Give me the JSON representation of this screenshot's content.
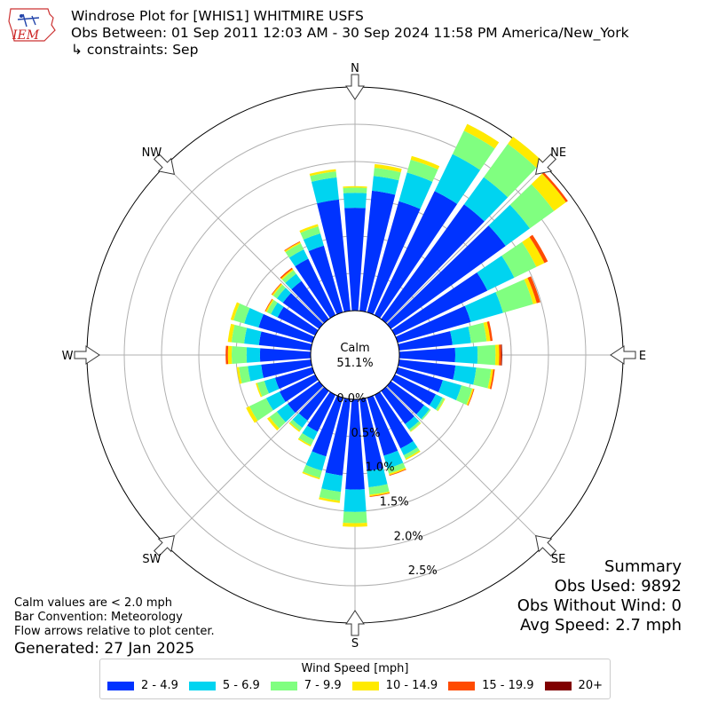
{
  "header": {
    "logo_text": "IEM",
    "title": "Windrose Plot for [WHIS1] WHITMIRE USFS",
    "obs_between": "Obs Between: 01 Sep 2011 12:03 AM - 30 Sep 2024 11:58 PM America/New_York",
    "constraints": "↳ constraints: Sep"
  },
  "summary": {
    "heading": "Summary",
    "obs_used": "Obs Used: 9892",
    "obs_without_wind": "Obs Without Wind: 0",
    "avg_speed": "Avg Speed: 2.7 mph"
  },
  "notes": {
    "calm_note": "Calm values are < 2.0 mph",
    "bar_convention": "Bar Convention: Meteorology",
    "flow_arrows": "Flow arrows relative to plot center.",
    "generated": "Generated: 27 Jan 2025"
  },
  "chart_data": {
    "type": "windrose",
    "calm_label": "Calm",
    "calm_percent": "51.1%",
    "radial_unit": "percent of observations",
    "radial_ticks": [
      "0.0%",
      "0.5%",
      "1.0%",
      "1.5%",
      "2.0%",
      "2.5%"
    ],
    "radial_tick_values": [
      0,
      0.5,
      1.0,
      1.5,
      2.0,
      2.5
    ],
    "radial_max": 3.0,
    "direction_labels": [
      "N",
      "NE",
      "E",
      "SE",
      "S",
      "SW",
      "W",
      "NW"
    ],
    "direction_angles": [
      0,
      45,
      90,
      135,
      180,
      225,
      270,
      315
    ],
    "legend_title": "Wind Speed [mph]",
    "bins": [
      {
        "label": "2 - 4.9",
        "color": "#0033ff"
      },
      {
        "label": "5 - 6.9",
        "color": "#00d4f0"
      },
      {
        "label": "7 - 9.9",
        "color": "#80ff80"
      },
      {
        "label": "10 - 14.9",
        "color": "#ffea00"
      },
      {
        "label": "15 - 19.9",
        "color": "#ff4b00"
      },
      {
        "label": "20+",
        "color": "#800000"
      }
    ],
    "sectors": [
      {
        "dir": 0,
        "values": [
          1.38,
          0.2,
          0.07,
          0.02,
          0.0,
          0.0
        ]
      },
      {
        "dir": 10,
        "values": [
          1.62,
          0.2,
          0.11,
          0.05,
          0.0,
          0.0
        ]
      },
      {
        "dir": 20,
        "values": [
          1.55,
          0.4,
          0.18,
          0.05,
          0.0,
          0.0
        ]
      },
      {
        "dir": 30,
        "values": [
          1.85,
          0.55,
          0.35,
          0.1,
          0.0,
          0.0
        ]
      },
      {
        "dir": 40,
        "values": [
          1.9,
          0.45,
          0.55,
          0.12,
          0.0,
          0.0
        ]
      },
      {
        "dir": 50,
        "values": [
          1.9,
          0.4,
          0.4,
          0.2,
          0.03,
          0.0
        ]
      },
      {
        "dir": 60,
        "values": [
          1.38,
          0.4,
          0.33,
          0.12,
          0.05,
          0.0
        ]
      },
      {
        "dir": 70,
        "values": [
          1.02,
          0.45,
          0.42,
          0.05,
          0.05,
          0.0
        ]
      },
      {
        "dir": 80,
        "values": [
          0.72,
          0.25,
          0.21,
          0.05,
          0.03,
          0.0
        ]
      },
      {
        "dir": 90,
        "values": [
          0.75,
          0.3,
          0.24,
          0.05,
          0.03,
          0.01
        ]
      },
      {
        "dir": 100,
        "values": [
          0.76,
          0.28,
          0.2,
          0.03,
          0.02,
          0.0
        ]
      },
      {
        "dir": 110,
        "values": [
          0.63,
          0.26,
          0.15,
          0.02,
          0.01,
          0.0
        ]
      },
      {
        "dir": 120,
        "values": [
          0.61,
          0.1,
          0.03,
          0.01,
          0.0,
          0.0
        ]
      },
      {
        "dir": 130,
        "values": [
          0.55,
          0.09,
          0.02,
          0.0,
          0.0,
          0.0
        ]
      },
      {
        "dir": 140,
        "values": [
          0.55,
          0.09,
          0.03,
          0.01,
          0.0,
          0.0
        ]
      },
      {
        "dir": 150,
        "values": [
          0.8,
          0.1,
          0.05,
          0.02,
          0.0,
          0.0
        ]
      },
      {
        "dir": 160,
        "values": [
          0.81,
          0.18,
          0.07,
          0.02,
          0.01,
          0.0
        ]
      },
      {
        "dir": 170,
        "values": [
          0.97,
          0.22,
          0.1,
          0.02,
          0.01,
          0.0
        ]
      },
      {
        "dir": 180,
        "values": [
          1.21,
          0.3,
          0.15,
          0.05,
          0.0,
          0.0
        ]
      },
      {
        "dir": 190,
        "values": [
          1.03,
          0.22,
          0.12,
          0.03,
          0.0,
          0.0
        ]
      },
      {
        "dir": 200,
        "values": [
          0.82,
          0.2,
          0.1,
          0.02,
          0.0,
          0.0
        ]
      },
      {
        "dir": 210,
        "values": [
          0.55,
          0.12,
          0.08,
          0.02,
          0.0,
          0.0
        ]
      },
      {
        "dir": 220,
        "values": [
          0.49,
          0.12,
          0.05,
          0.02,
          0.0,
          0.0
        ]
      },
      {
        "dir": 230,
        "values": [
          0.52,
          0.18,
          0.12,
          0.04,
          0.0,
          0.0
        ]
      },
      {
        "dir": 240,
        "values": [
          0.53,
          0.2,
          0.25,
          0.05,
          0.0,
          0.0
        ]
      },
      {
        "dir": 250,
        "values": [
          0.52,
          0.15,
          0.1,
          0.02,
          0.0,
          0.0
        ]
      },
      {
        "dir": 260,
        "values": [
          0.67,
          0.18,
          0.12,
          0.03,
          0.0,
          0.0
        ]
      },
      {
        "dir": 270,
        "values": [
          0.68,
          0.18,
          0.2,
          0.05,
          0.03,
          0.0
        ]
      },
      {
        "dir": 280,
        "values": [
          0.7,
          0.2,
          0.17,
          0.05,
          0.0,
          0.0
        ]
      },
      {
        "dir": 290,
        "values": [
          0.75,
          0.2,
          0.15,
          0.04,
          0.0,
          0.0
        ]
      },
      {
        "dir": 300,
        "values": [
          0.56,
          0.1,
          0.06,
          0.02,
          0.01,
          0.0
        ]
      },
      {
        "dir": 310,
        "values": [
          0.6,
          0.1,
          0.06,
          0.02,
          0.01,
          0.0
        ]
      },
      {
        "dir": 320,
        "values": [
          0.63,
          0.12,
          0.06,
          0.02,
          0.02,
          0.0
        ]
      },
      {
        "dir": 330,
        "values": [
          0.84,
          0.14,
          0.09,
          0.02,
          0.01,
          0.0
        ]
      },
      {
        "dir": 340,
        "values": [
          0.93,
          0.17,
          0.1,
          0.03,
          0.0,
          0.0
        ]
      },
      {
        "dir": 350,
        "values": [
          1.5,
          0.3,
          0.08,
          0.03,
          0.0,
          0.0
        ]
      }
    ]
  }
}
